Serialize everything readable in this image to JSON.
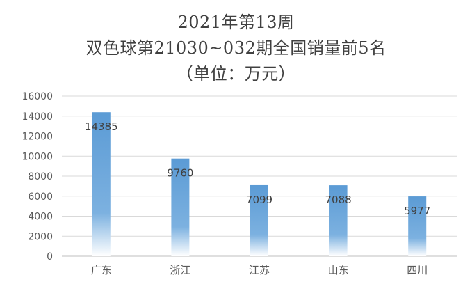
{
  "chart_data": {
    "type": "bar",
    "title_lines": [
      "2021年第13周",
      "双色球第21030~032期全国销量前5名",
      "（单位：万元）"
    ],
    "categories": [
      "广东",
      "浙江",
      "江苏",
      "山东",
      "四川"
    ],
    "values": [
      14385,
      9760,
      7099,
      7088,
      5977
    ],
    "data_labels": [
      "14385",
      "9760",
      "7099",
      "7088",
      "5977"
    ],
    "ylim": [
      0,
      16000
    ],
    "y_ticks": [
      "0",
      "2000",
      "4000",
      "6000",
      "8000",
      "10000",
      "12000",
      "14000",
      "16000"
    ],
    "grid": true,
    "bar_color": "#5B9BD5",
    "bar_fill": "gradient to white at bottom"
  }
}
